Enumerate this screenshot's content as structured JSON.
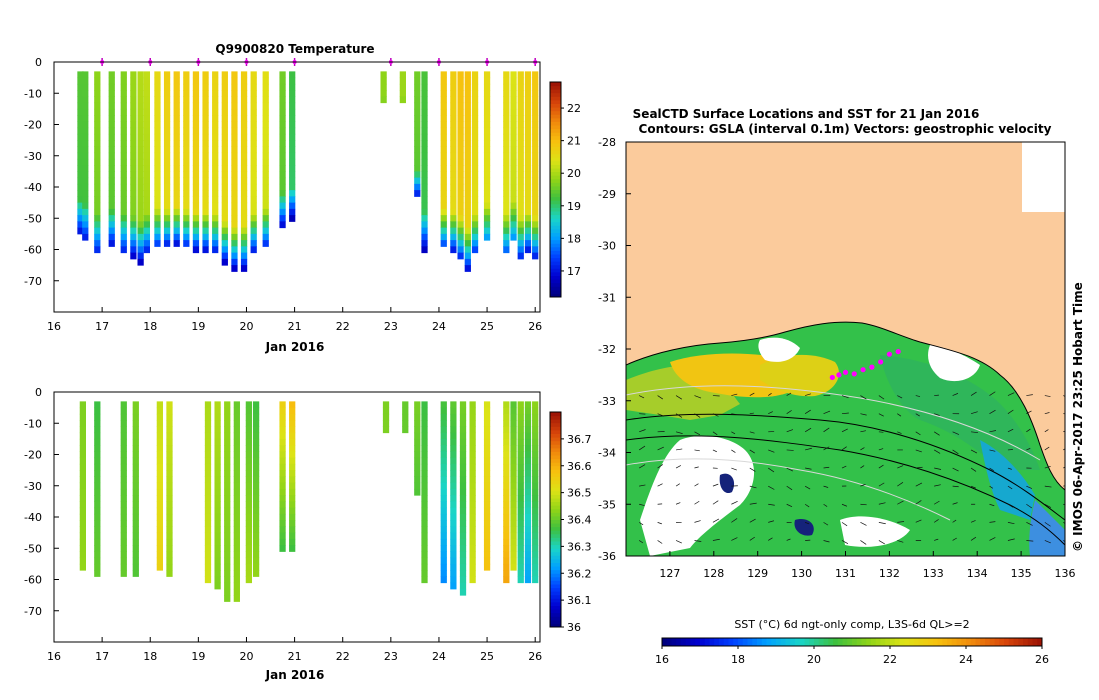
{
  "chart_data": [
    {
      "type": "heatmap",
      "title": "Q9900820  Temperature",
      "xlabel": "Jan 2016",
      "ylabel": "",
      "xlim": [
        16,
        26.1
      ],
      "ylim": [
        -80,
        0
      ],
      "x_ticks": [
        "16",
        "17",
        "18",
        "19",
        "20",
        "21",
        "22",
        "23",
        "24",
        "25",
        "26"
      ],
      "y_ticks": [
        "0",
        "-10",
        "-20",
        "-30",
        "-40",
        "-50",
        "-60",
        "-70"
      ],
      "markers_x": [
        17,
        18,
        19,
        20,
        21,
        23,
        24,
        25,
        26
      ],
      "colorbar": {
        "min": 16.2,
        "max": 22.8,
        "ticks": [
          "17",
          "18",
          "19",
          "20",
          "21",
          "22"
        ]
      },
      "profiles": [
        {
          "x": 16.55,
          "depth": 55,
          "surface": 19.4,
          "bottom": 16.6
        },
        {
          "x": 16.65,
          "depth": 57,
          "surface": 19.4,
          "bottom": 16.7
        },
        {
          "x": 16.9,
          "depth": 61,
          "surface": 19.8,
          "bottom": 16.8
        },
        {
          "x": 17.2,
          "depth": 59,
          "surface": 19.6,
          "bottom": 16.6
        },
        {
          "x": 17.45,
          "depth": 61,
          "surface": 19.7,
          "bottom": 16.8
        },
        {
          "x": 17.65,
          "depth": 62,
          "surface": 19.9,
          "bottom": 16.6
        },
        {
          "x": 17.8,
          "depth": 64,
          "surface": 20.1,
          "bottom": 16.5
        },
        {
          "x": 17.93,
          "depth": 61,
          "surface": 20.2,
          "bottom": 16.7
        },
        {
          "x": 18.15,
          "depth": 59,
          "surface": 20.6,
          "bottom": 16.9
        },
        {
          "x": 18.35,
          "depth": 59,
          "surface": 20.8,
          "bottom": 16.6
        },
        {
          "x": 18.55,
          "depth": 58,
          "surface": 20.9,
          "bottom": 16.7
        },
        {
          "x": 18.75,
          "depth": 59,
          "surface": 20.8,
          "bottom": 16.8
        },
        {
          "x": 18.95,
          "depth": 60,
          "surface": 20.9,
          "bottom": 16.6
        },
        {
          "x": 19.15,
          "depth": 60,
          "surface": 20.8,
          "bottom": 16.7
        },
        {
          "x": 19.35,
          "depth": 61,
          "surface": 20.7,
          "bottom": 16.6
        },
        {
          "x": 19.55,
          "depth": 64,
          "surface": 20.8,
          "bottom": 16.5
        },
        {
          "x": 19.75,
          "depth": 66,
          "surface": 20.9,
          "bottom": 16.5
        },
        {
          "x": 19.95,
          "depth": 66,
          "surface": 20.8,
          "bottom": 16.5
        },
        {
          "x": 20.15,
          "depth": 61,
          "surface": 20.6,
          "bottom": 16.6
        },
        {
          "x": 20.4,
          "depth": 59,
          "surface": 20.5,
          "bottom": 16.8
        },
        {
          "x": 20.75,
          "depth": 52,
          "surface": 19.6,
          "bottom": 16.7
        },
        {
          "x": 20.95,
          "depth": 50,
          "surface": 19.2,
          "bottom": 16.4
        },
        {
          "x": 22.85,
          "depth": 13,
          "surface": 19.8,
          "bottom": 19.6
        },
        {
          "x": 23.25,
          "depth": 13,
          "surface": 19.9,
          "bottom": 19.6
        },
        {
          "x": 23.55,
          "depth": 43,
          "surface": 19.6,
          "bottom": 16.6
        },
        {
          "x": 23.7,
          "depth": 60,
          "surface": 19.3,
          "bottom": 16.5
        },
        {
          "x": 24.1,
          "depth": 59,
          "surface": 20.9,
          "bottom": 17.0
        },
        {
          "x": 24.3,
          "depth": 60,
          "surface": 20.8,
          "bottom": 16.8
        },
        {
          "x": 24.45,
          "depth": 62,
          "surface": 21.0,
          "bottom": 17.0
        },
        {
          "x": 24.6,
          "depth": 66,
          "surface": 21.0,
          "bottom": 16.7
        },
        {
          "x": 24.75,
          "depth": 61,
          "surface": 20.7,
          "bottom": 16.9
        },
        {
          "x": 25.0,
          "depth": 57,
          "surface": 20.6,
          "bottom": 17.6
        },
        {
          "x": 25.4,
          "depth": 61,
          "surface": 20.6,
          "bottom": 17.2
        },
        {
          "x": 25.55,
          "depth": 56,
          "surface": 20.4,
          "bottom": 17.8
        },
        {
          "x": 25.7,
          "depth": 62,
          "surface": 20.7,
          "bottom": 17.0
        },
        {
          "x": 25.85,
          "depth": 60,
          "surface": 20.8,
          "bottom": 16.8
        },
        {
          "x": 26.0,
          "depth": 62,
          "surface": 20.9,
          "bottom": 16.9
        }
      ]
    },
    {
      "type": "heatmap",
      "title": "",
      "xlabel": "Jan 2016",
      "ylabel": "",
      "xlim": [
        16,
        26.1
      ],
      "ylim": [
        -80,
        0
      ],
      "x_ticks": [
        "16",
        "17",
        "18",
        "19",
        "20",
        "21",
        "22",
        "23",
        "24",
        "25",
        "26"
      ],
      "y_ticks": [
        "0",
        "-10",
        "-20",
        "-30",
        "-40",
        "-50",
        "-60",
        "-70"
      ],
      "colorbar": {
        "min": 36.0,
        "max": 36.8,
        "ticks": [
          "36",
          "36.1",
          "36.2",
          "36.3",
          "36.4",
          "36.5",
          "36.6",
          "36.7"
        ]
      },
      "profiles": [
        {
          "x": 16.6,
          "depth": 56,
          "surface": 36.42,
          "bottom": 36.44
        },
        {
          "x": 16.9,
          "depth": 59,
          "surface": 36.36,
          "bottom": 36.4
        },
        {
          "x": 17.45,
          "depth": 59,
          "surface": 36.38,
          "bottom": 36.4
        },
        {
          "x": 17.7,
          "depth": 59,
          "surface": 36.42,
          "bottom": 36.38
        },
        {
          "x": 18.2,
          "depth": 56,
          "surface": 36.48,
          "bottom": 36.55
        },
        {
          "x": 18.4,
          "depth": 58,
          "surface": 36.5,
          "bottom": 36.44
        },
        {
          "x": 19.2,
          "depth": 61,
          "surface": 36.46,
          "bottom": 36.5
        },
        {
          "x": 19.4,
          "depth": 62,
          "surface": 36.47,
          "bottom": 36.42
        },
        {
          "x": 19.6,
          "depth": 66,
          "surface": 36.44,
          "bottom": 36.42
        },
        {
          "x": 19.8,
          "depth": 66,
          "surface": 36.4,
          "bottom": 36.44
        },
        {
          "x": 20.05,
          "depth": 60,
          "surface": 36.38,
          "bottom": 36.46
        },
        {
          "x": 20.2,
          "depth": 58,
          "surface": 36.36,
          "bottom": 36.44
        },
        {
          "x": 20.75,
          "depth": 50,
          "surface": 36.56,
          "bottom": 36.36
        },
        {
          "x": 20.95,
          "depth": 50,
          "surface": 36.6,
          "bottom": 36.36
        },
        {
          "x": 22.9,
          "depth": 13,
          "surface": 36.42,
          "bottom": 36.42
        },
        {
          "x": 23.3,
          "depth": 13,
          "surface": 36.4,
          "bottom": 36.4
        },
        {
          "x": 23.55,
          "depth": 32,
          "surface": 36.42,
          "bottom": 36.38
        },
        {
          "x": 23.7,
          "depth": 60,
          "surface": 36.36,
          "bottom": 36.4
        },
        {
          "x": 24.1,
          "depth": 60,
          "surface": 36.38,
          "bottom": 36.2
        },
        {
          "x": 24.3,
          "depth": 62,
          "surface": 36.4,
          "bottom": 36.22
        },
        {
          "x": 24.5,
          "depth": 65,
          "surface": 36.42,
          "bottom": 36.3
        },
        {
          "x": 24.7,
          "depth": 61,
          "surface": 36.44,
          "bottom": 36.5
        },
        {
          "x": 25.0,
          "depth": 57,
          "surface": 36.5,
          "bottom": 36.58
        },
        {
          "x": 25.4,
          "depth": 60,
          "surface": 36.46,
          "bottom": 36.62
        },
        {
          "x": 25.55,
          "depth": 56,
          "surface": 36.38,
          "bottom": 36.5
        },
        {
          "x": 25.7,
          "depth": 60,
          "surface": 36.44,
          "bottom": 36.3
        },
        {
          "x": 25.85,
          "depth": 61,
          "surface": 36.42,
          "bottom": 36.22
        },
        {
          "x": 26.0,
          "depth": 60,
          "surface": 36.44,
          "bottom": 36.3
        }
      ]
    },
    {
      "type": "heatmap",
      "title": "SealCTD Surface Locations and SST for 21 Jan 2016",
      "subtitle": "Contours: GSLA (interval 0.1m) Vectors: geostrophic velocity",
      "xlabel": "",
      "ylabel": "",
      "xlim": [
        126,
        136
      ],
      "ylim": [
        -36,
        -28
      ],
      "x_ticks": [
        "127",
        "128",
        "129",
        "130",
        "131",
        "132",
        "133",
        "134",
        "135",
        "136"
      ],
      "y_ticks": [
        "-28",
        "-29",
        "-30",
        "-31",
        "-32",
        "-33",
        "-34",
        "-35",
        "-36"
      ],
      "colorbar": {
        "label": "SST (°C) 6d ngt-only comp, L3S-6d QL>=2",
        "min": 16,
        "max": 26,
        "ticks": [
          "16",
          "18",
          "20",
          "22",
          "24",
          "26"
        ]
      },
      "credit": "© IMOS 06-Apr-2017 23:25 Hobart Time",
      "seal_locations": [
        [
          130.7,
          -32.55
        ],
        [
          130.85,
          -32.5
        ],
        [
          131.0,
          -32.45
        ],
        [
          131.2,
          -32.48
        ],
        [
          131.4,
          -32.4
        ],
        [
          131.6,
          -32.35
        ],
        [
          131.8,
          -32.25
        ],
        [
          132.0,
          -32.1
        ],
        [
          132.2,
          -32.05
        ]
      ]
    }
  ]
}
